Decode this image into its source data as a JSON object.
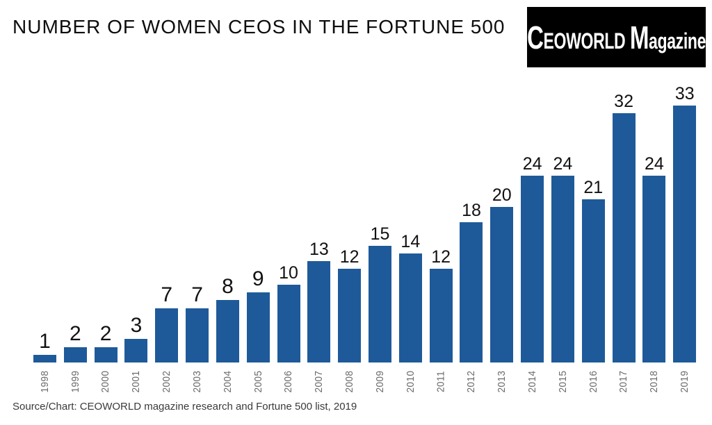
{
  "title": "NUMBER OF WOMEN CEOS IN THE FORTUNE 500",
  "logo": {
    "ceoworld_initial": "C",
    "ceoworld_rest": "EOWORLD",
    "magazine_initial": "M",
    "magazine_rest": "agazine"
  },
  "source": "Source/Chart: CEOWORLD magazine research and Fortune 500 list, 2019",
  "colors": {
    "bar": "#1E5A99",
    "title": "#0d0d0d",
    "value_label": "#121212",
    "year_label": "#6a6a6a",
    "source": "#3a3a3a",
    "logo_bg": "#000000",
    "logo_text": "#ffffff",
    "background": "#ffffff"
  },
  "chart_data": {
    "type": "bar",
    "title": "NUMBER OF WOMEN CEOS IN THE FORTUNE 500",
    "categories": [
      "1998",
      "1999",
      "2000",
      "2001",
      "2002",
      "2003",
      "2004",
      "2005",
      "2006",
      "2007",
      "2008",
      "2009",
      "2010",
      "2011",
      "2012",
      "2013",
      "2014",
      "2015",
      "2016",
      "2017",
      "2018",
      "2019"
    ],
    "values": [
      1,
      2,
      2,
      3,
      7,
      7,
      8,
      9,
      10,
      13,
      12,
      15,
      14,
      12,
      18,
      20,
      24,
      24,
      21,
      32,
      24,
      33
    ],
    "xlabel": "",
    "ylabel": "",
    "ylim": [
      0,
      33
    ],
    "grid": false,
    "legend": "none",
    "value_labels": true,
    "x_tick_rotation": -90
  }
}
